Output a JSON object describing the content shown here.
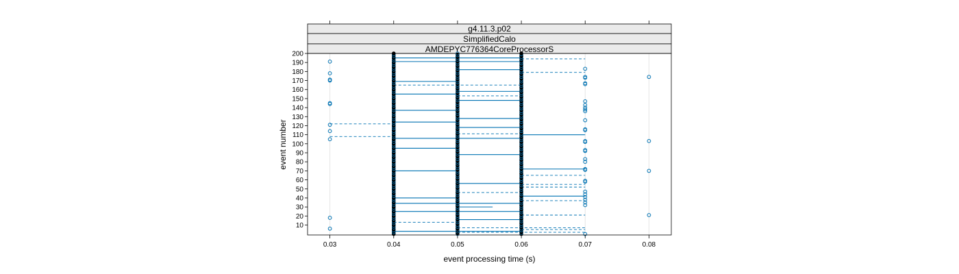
{
  "chart_data": {
    "type": "scatter",
    "strips": [
      "g4.11.3.p02",
      "SimplifiedCalo",
      "AMDEPYC776364CoreProcessorS"
    ],
    "xlabel": "event processing time (s)",
    "ylabel": "event number",
    "xlim": [
      0.0265,
      0.0835
    ],
    "ylim": [
      -1,
      200
    ],
    "x_ticks": [
      0.03,
      0.04,
      0.05,
      0.06,
      0.07,
      0.08
    ],
    "x_tick_labels": [
      "0.03",
      "0.04",
      "0.05",
      "0.06",
      "0.07",
      "0.08"
    ],
    "y_ticks": [
      10,
      20,
      30,
      40,
      50,
      60,
      70,
      80,
      90,
      100,
      110,
      120,
      130,
      140,
      150,
      160,
      170,
      180,
      190,
      200
    ],
    "y_tick_labels": [
      "10",
      "20",
      "30",
      "40",
      "50",
      "60",
      "70",
      "80",
      "90",
      "100",
      "110",
      "120",
      "130",
      "140",
      "150",
      "160",
      "170",
      "180",
      "190",
      "200"
    ],
    "colors": {
      "open_points": "#0072B2",
      "filled_points": "#000000",
      "lines": "#0072B2",
      "grid": "#e6e6e6"
    },
    "outlier_points": [
      {
        "x": 0.03,
        "y": 6
      },
      {
        "x": 0.03,
        "y": 18
      },
      {
        "x": 0.03,
        "y": 105
      },
      {
        "x": 0.03,
        "y": 114
      },
      {
        "x": 0.03,
        "y": 121
      },
      {
        "x": 0.03,
        "y": 144
      },
      {
        "x": 0.03,
        "y": 145
      },
      {
        "x": 0.03,
        "y": 170
      },
      {
        "x": 0.03,
        "y": 171
      },
      {
        "x": 0.03,
        "y": 178
      },
      {
        "x": 0.03,
        "y": 191
      },
      {
        "x": 0.07,
        "y": 0
      },
      {
        "x": 0.07,
        "y": 32
      },
      {
        "x": 0.07,
        "y": 35
      },
      {
        "x": 0.07,
        "y": 38
      },
      {
        "x": 0.07,
        "y": 41
      },
      {
        "x": 0.07,
        "y": 44
      },
      {
        "x": 0.07,
        "y": 47
      },
      {
        "x": 0.07,
        "y": 58
      },
      {
        "x": 0.07,
        "y": 59
      },
      {
        "x": 0.07,
        "y": 71
      },
      {
        "x": 0.07,
        "y": 72
      },
      {
        "x": 0.07,
        "y": 80
      },
      {
        "x": 0.07,
        "y": 83
      },
      {
        "x": 0.07,
        "y": 92
      },
      {
        "x": 0.07,
        "y": 93
      },
      {
        "x": 0.07,
        "y": 102
      },
      {
        "x": 0.07,
        "y": 103
      },
      {
        "x": 0.07,
        "y": 115
      },
      {
        "x": 0.07,
        "y": 116
      },
      {
        "x": 0.07,
        "y": 126
      },
      {
        "x": 0.07,
        "y": 136
      },
      {
        "x": 0.07,
        "y": 138
      },
      {
        "x": 0.07,
        "y": 140
      },
      {
        "x": 0.07,
        "y": 143
      },
      {
        "x": 0.07,
        "y": 147
      },
      {
        "x": 0.07,
        "y": 166
      },
      {
        "x": 0.07,
        "y": 167
      },
      {
        "x": 0.07,
        "y": 173
      },
      {
        "x": 0.07,
        "y": 174
      },
      {
        "x": 0.07,
        "y": 183
      },
      {
        "x": 0.08,
        "y": 21
      },
      {
        "x": 0.08,
        "y": 70
      },
      {
        "x": 0.08,
        "y": 103
      },
      {
        "x": 0.08,
        "y": 174
      }
    ],
    "solid_segments": [
      {
        "y": 195,
        "x1": 0.04,
        "x2": 0.06
      },
      {
        "y": 191,
        "x1": 0.04,
        "x2": 0.06
      },
      {
        "y": 182,
        "x1": 0.05,
        "x2": 0.06
      },
      {
        "y": 169,
        "x1": 0.04,
        "x2": 0.05
      },
      {
        "y": 158,
        "x1": 0.05,
        "x2": 0.06
      },
      {
        "y": 155,
        "x1": 0.04,
        "x2": 0.05
      },
      {
        "y": 148,
        "x1": 0.05,
        "x2": 0.06
      },
      {
        "y": 137,
        "x1": 0.04,
        "x2": 0.05
      },
      {
        "y": 128,
        "x1": 0.05,
        "x2": 0.06
      },
      {
        "y": 124,
        "x1": 0.04,
        "x2": 0.05
      },
      {
        "y": 118,
        "x1": 0.05,
        "x2": 0.06
      },
      {
        "y": 110,
        "x1": 0.06,
        "x2": 0.07
      },
      {
        "y": 106,
        "x1": 0.04,
        "x2": 0.06
      },
      {
        "y": 95,
        "x1": 0.04,
        "x2": 0.05
      },
      {
        "y": 88,
        "x1": 0.05,
        "x2": 0.06
      },
      {
        "y": 72,
        "x1": 0.06,
        "x2": 0.07
      },
      {
        "y": 70,
        "x1": 0.04,
        "x2": 0.05
      },
      {
        "y": 56,
        "x1": 0.05,
        "x2": 0.06
      },
      {
        "y": 42,
        "x1": 0.06,
        "x2": 0.07
      },
      {
        "y": 40,
        "x1": 0.04,
        "x2": 0.05
      },
      {
        "y": 34,
        "x1": 0.04,
        "x2": 0.06
      },
      {
        "y": 30,
        "x1": 0.05,
        "x2": 0.0555
      },
      {
        "y": 25,
        "x1": 0.04,
        "x2": 0.06
      },
      {
        "y": 16,
        "x1": 0.05,
        "x2": 0.06
      },
      {
        "y": 3,
        "x1": 0.04,
        "x2": 0.06
      }
    ],
    "dashed_segments": [
      {
        "y": 194,
        "x1": 0.06,
        "x2": 0.07
      },
      {
        "y": 179,
        "x1": 0.06,
        "x2": 0.07
      },
      {
        "y": 165,
        "x1": 0.04,
        "x2": 0.06
      },
      {
        "y": 153,
        "x1": 0.05,
        "x2": 0.06
      },
      {
        "y": 122,
        "x1": 0.03,
        "x2": 0.04
      },
      {
        "y": 111,
        "x1": 0.05,
        "x2": 0.06
      },
      {
        "y": 108,
        "x1": 0.03,
        "x2": 0.04
      },
      {
        "y": 65,
        "x1": 0.06,
        "x2": 0.07
      },
      {
        "y": 55,
        "x1": 0.06,
        "x2": 0.07
      },
      {
        "y": 52,
        "x1": 0.06,
        "x2": 0.07
      },
      {
        "y": 46,
        "x1": 0.05,
        "x2": 0.06
      },
      {
        "y": 37,
        "x1": 0.06,
        "x2": 0.07
      },
      {
        "y": 21,
        "x1": 0.06,
        "x2": 0.07
      },
      {
        "y": 13,
        "x1": 0.04,
        "x2": 0.05
      },
      {
        "y": 7,
        "x1": 0.05,
        "x2": 0.07
      },
      {
        "y": 5,
        "x1": 0.06,
        "x2": 0.07
      },
      {
        "y": 2,
        "x1": 0.05,
        "x2": 0.07
      }
    ]
  }
}
